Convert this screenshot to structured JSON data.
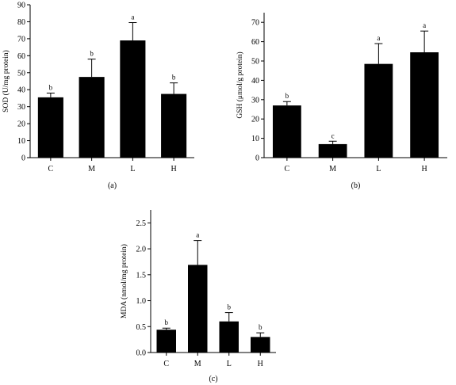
{
  "colors": {
    "bar": "#000000",
    "axis": "#000000",
    "background": "#ffffff"
  },
  "chart_data": [
    {
      "type": "bar",
      "caption": "(a)",
      "xlabel": "",
      "ylabel": "SOD (U/mg protein)",
      "categories": [
        "C",
        "M",
        "L",
        "H"
      ],
      "values": [
        35.5,
        47.5,
        69,
        37.5
      ],
      "errors": [
        2.5,
        10.5,
        10.5,
        6.5
      ],
      "labels": [
        "b",
        "b",
        "a",
        "b"
      ],
      "ylim": [
        0,
        90
      ],
      "yticks": [
        0,
        10,
        20,
        30,
        40,
        50,
        60,
        70,
        80,
        90
      ],
      "ytick_labels": [
        "0",
        "10",
        "20",
        "30",
        "40",
        "50",
        "60",
        "70",
        "80",
        "90"
      ],
      "grid": false
    },
    {
      "type": "bar",
      "caption": "(b)",
      "xlabel": "",
      "ylabel": "GSH (μmol/g protein)",
      "categories": [
        "C",
        "M",
        "L",
        "H"
      ],
      "values": [
        27,
        7,
        48.5,
        54.5
      ],
      "errors": [
        2,
        1.5,
        10.5,
        11
      ],
      "labels": [
        "b",
        "c",
        "a",
        "a"
      ],
      "ylim": [
        0,
        75
      ],
      "yticks": [
        0,
        10,
        20,
        30,
        40,
        50,
        60,
        70
      ],
      "ytick_labels": [
        "0",
        "10",
        "20",
        "30",
        "40",
        "50",
        "60",
        "70"
      ],
      "grid": false
    },
    {
      "type": "bar",
      "caption": "(c)",
      "xlabel": "",
      "ylabel": "MDA (nmol/mg protein)",
      "categories": [
        "C",
        "M",
        "L",
        "H"
      ],
      "values": [
        0.44,
        1.69,
        0.6,
        0.3
      ],
      "errors": [
        0.03,
        0.47,
        0.17,
        0.08
      ],
      "labels": [
        "b",
        "a",
        "b",
        "b"
      ],
      "ylim": [
        0,
        2.75
      ],
      "yticks": [
        0,
        0.5,
        1.0,
        1.5,
        2.0,
        2.5
      ],
      "ytick_labels": [
        "0.0",
        "0.5",
        "1.0",
        "1.5",
        "2.0",
        "2.5"
      ],
      "grid": false
    }
  ]
}
